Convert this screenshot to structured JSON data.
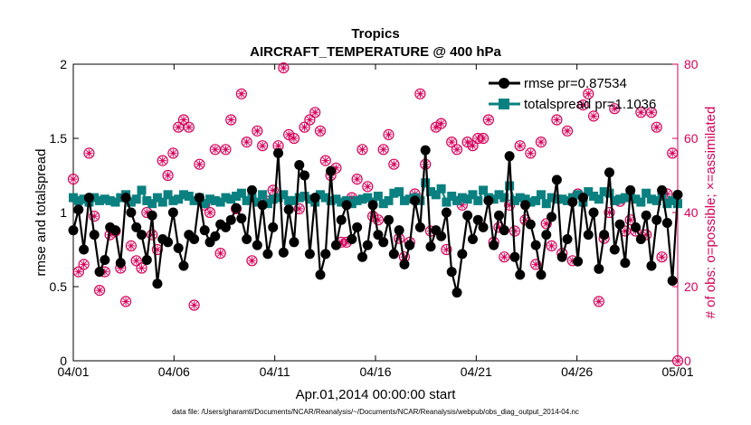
{
  "chart_data": {
    "type": "line",
    "title": "Tropics",
    "subtitle": "AIRCRAFT_TEMPERATURE @ 400 hPa",
    "xlabel": "Apr.01,2014 00:00:00 start",
    "ylabel": "rmse and totalspread",
    "ylabel_right": "# of obs: o=possible; ×=assimilated",
    "xlim": [
      1,
      31
    ],
    "ylim": [
      0,
      2
    ],
    "ylim_right": [
      0,
      80
    ],
    "x_ticks": [
      "04/01",
      "04/06",
      "04/11",
      "04/16",
      "04/21",
      "04/26",
      "05/01"
    ],
    "y_ticks": [
      "0",
      "0.5",
      "1",
      "1.5",
      "2"
    ],
    "y_ticks_right": [
      "0",
      "20",
      "40",
      "60",
      "80"
    ],
    "legend_position": "top-right",
    "footnote": "data file: /Users/gharamti/Documents/NCAR/Reanalysis/~/Documents/NCAR/Reanalysis/webpub/obs_diag_output_2014-04.nc",
    "x_step_days": 0.25,
    "series": [
      {
        "name": "rmse pr=0.87534",
        "color": "#000000",
        "marker": "circle",
        "values": [
          0.88,
          1.02,
          0.75,
          1.1,
          0.85,
          0.6,
          0.68,
          0.9,
          0.88,
          0.66,
          1.1,
          1.0,
          0.9,
          0.85,
          0.68,
          0.98,
          0.52,
          0.82,
          0.8,
          1.0,
          0.76,
          0.64,
          0.85,
          0.82,
          1.1,
          0.88,
          0.8,
          0.84,
          0.92,
          0.9,
          0.95,
          1.03,
          0.96,
          0.82,
          1.15,
          0.78,
          1.05,
          0.72,
          0.9,
          1.4,
          0.73,
          1.02,
          0.8,
          1.32,
          1.25,
          0.72,
          1.1,
          0.58,
          0.72,
          1.28,
          0.78,
          0.95,
          1.05,
          0.82,
          0.9,
          0.7,
          0.78,
          1.05,
          0.85,
          0.8,
          0.95,
          0.72,
          0.88,
          0.65,
          0.78,
          1.08,
          0.9,
          1.42,
          0.77,
          0.88,
          0.84,
          1.0,
          0.6,
          0.46,
          0.72,
          0.98,
          0.82,
          0.95,
          0.9,
          1.08,
          0.78,
          0.98,
          0.88,
          1.38,
          0.7,
          0.58,
          1.05,
          0.92,
          0.78,
          0.58,
          0.85,
          0.97,
          1.22,
          0.7,
          0.82,
          1.07,
          0.67,
          1.1,
          0.85,
          1.0,
          0.62,
          0.85,
          1.27,
          0.75,
          0.92,
          0.66,
          1.15,
          0.9,
          0.82,
          0.98,
          0.64,
          0.95,
          1.15,
          0.93,
          0.54,
          1.12
        ]
      },
      {
        "name": "totalspread pr=1.1036",
        "color": "#0b8080",
        "marker": "square",
        "values": [
          1.1,
          1.08,
          1.09,
          1.07,
          1.1,
          1.08,
          1.09,
          1.08,
          1.07,
          1.1,
          1.12,
          1.07,
          1.09,
          1.15,
          1.08,
          1.06,
          1.1,
          1.07,
          1.12,
          1.08,
          1.09,
          1.12,
          1.11,
          1.08,
          1.1,
          1.06,
          1.09,
          1.08,
          1.07,
          1.1,
          1.09,
          1.11,
          1.13,
          1.08,
          1.1,
          1.07,
          1.12,
          1.06,
          1.09,
          1.1,
          1.12,
          1.08,
          1.08,
          1.1,
          1.11,
          1.09,
          1.07,
          1.12,
          1.1,
          1.08,
          1.09,
          1.07,
          1.08,
          1.06,
          1.08,
          1.09,
          1.1,
          1.07,
          1.11,
          1.06,
          1.08,
          1.13,
          1.14,
          1.08,
          1.09,
          1.1,
          1.08,
          1.2,
          1.14,
          1.12,
          1.16,
          1.07,
          1.11,
          1.08,
          1.1,
          1.09,
          1.12,
          1.08,
          1.15,
          1.1,
          1.09,
          1.12,
          1.1,
          1.18,
          1.08,
          1.1,
          1.09,
          1.07,
          1.08,
          1.12,
          1.06,
          1.1,
          1.09,
          1.09,
          1.08,
          1.1,
          1.12,
          1.07,
          1.14,
          1.11,
          1.09,
          1.14,
          1.13,
          1.08,
          1.09,
          1.1,
          1.12,
          1.09,
          1.07,
          1.13,
          1.09,
          1.08,
          1.11,
          1.06,
          1.08,
          1.06
        ]
      },
      {
        "name": "# of obs possible / assimilated",
        "color": "#d6005a",
        "marker": "circle-x",
        "axis": "right",
        "values": [
          49,
          24,
          26,
          56,
          39,
          19,
          24,
          34,
          35,
          25,
          16,
          31,
          27,
          25,
          40,
          34,
          30,
          54,
          50,
          56,
          63,
          65,
          63,
          15,
          53,
          42,
          40,
          57,
          29,
          57,
          65,
          41,
          72,
          59,
          27,
          62,
          58,
          43,
          46,
          58,
          79,
          61,
          60,
          41,
          63,
          65,
          67,
          62,
          54,
          50,
          52,
          32,
          32,
          44,
          49,
          57,
          47,
          39,
          38,
          57,
          61,
          53,
          33,
          28,
          32,
          45,
          72,
          53,
          35,
          63,
          64,
          30,
          59,
          57,
          42,
          59,
          58,
          60,
          60,
          65,
          32,
          36,
          28,
          42,
          35,
          58,
          38,
          56,
          26,
          59,
          37,
          31,
          65,
          29,
          62,
          27,
          45,
          69,
          72,
          66,
          16,
          33,
          40,
          68,
          43,
          35,
          38,
          35,
          67,
          34,
          67,
          63,
          28,
          45,
          56,
          0
        ]
      }
    ]
  }
}
